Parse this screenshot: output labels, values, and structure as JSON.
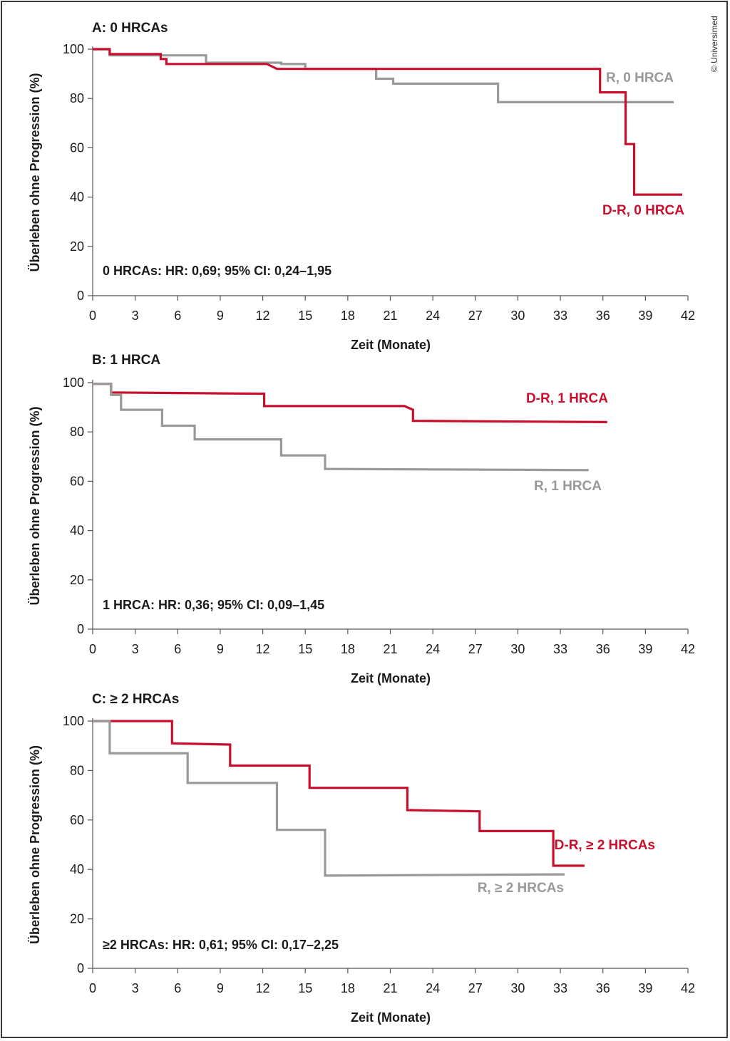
{
  "copyright": "© Universimed",
  "colors": {
    "treatment": "#c8102e",
    "control": "#999999",
    "axis": "#555555"
  },
  "chart_data": [
    {
      "type": "line",
      "panel": "A",
      "title": "A: 0 HRCAs",
      "xlabel": "Zeit (Monate)",
      "ylabel": "Überleben ohne Progression (%)",
      "xlim": [
        0,
        42
      ],
      "ylim": [
        0,
        100
      ],
      "xticks": [
        "0",
        "3",
        "6",
        "9",
        "12",
        "15",
        "18",
        "21",
        "24",
        "27",
        "30",
        "33",
        "36",
        "39",
        "42"
      ],
      "yticks": [
        "0",
        "20",
        "40",
        "60",
        "80",
        "100"
      ],
      "annotation": "0 HRCAs: HR: 0,69; 95% CI: 0,24–1,95",
      "series": [
        {
          "name": "R, 0 HRCA",
          "color": "#999999",
          "points": [
            [
              0,
              100
            ],
            [
              1.2,
              100
            ],
            [
              1.2,
              97.5
            ],
            [
              8,
              97.5
            ],
            [
              8,
              94.5
            ],
            [
              13.3,
              94.5
            ],
            [
              13.3,
              94
            ],
            [
              15,
              94
            ],
            [
              15,
              92
            ],
            [
              20,
              92
            ],
            [
              20,
              88
            ],
            [
              21.2,
              88
            ],
            [
              21.2,
              86
            ],
            [
              28.6,
              86
            ],
            [
              28.6,
              78.5
            ],
            [
              41,
              78.5
            ]
          ]
        },
        {
          "name": "D-R, 0 HRCA",
          "color": "#c8102e",
          "points": [
            [
              0,
              100
            ],
            [
              1.2,
              100
            ],
            [
              1.2,
              98
            ],
            [
              4.8,
              98
            ],
            [
              4.8,
              96
            ],
            [
              5.2,
              96
            ],
            [
              5.2,
              94
            ],
            [
              12.3,
              94
            ],
            [
              13,
              92
            ],
            [
              35.8,
              92
            ],
            [
              35.8,
              82.5
            ],
            [
              37.6,
              82.5
            ],
            [
              37.6,
              61.5
            ],
            [
              38.2,
              61.5
            ],
            [
              38.2,
              41
            ],
            [
              41.6,
              41
            ]
          ]
        }
      ]
    },
    {
      "type": "line",
      "panel": "B",
      "title": "B: 1 HRCA",
      "xlabel": "Zeit (Monate)",
      "ylabel": "Überleben ohne Progression (%)",
      "xlim": [
        0,
        42
      ],
      "ylim": [
        0,
        100
      ],
      "xticks": [
        "0",
        "3",
        "6",
        "9",
        "12",
        "15",
        "18",
        "21",
        "24",
        "27",
        "30",
        "33",
        "36",
        "39",
        "42"
      ],
      "yticks": [
        "0",
        "20",
        "40",
        "60",
        "80",
        "100"
      ],
      "annotation": "1 HRCA: HR: 0,36; 95% CI: 0,09–1,45",
      "series": [
        {
          "name": "D-R, 1 HRCA",
          "color": "#c8102e",
          "points": [
            [
              0,
              99.5
            ],
            [
              1.3,
              99.5
            ],
            [
              1.3,
              96
            ],
            [
              12.1,
              95.5
            ],
            [
              12.1,
              90.5
            ],
            [
              22,
              90.5
            ],
            [
              22.6,
              89
            ],
            [
              22.6,
              84.5
            ],
            [
              36.3,
              84
            ]
          ]
        },
        {
          "name": "R, 1 HRCA",
          "color": "#999999",
          "points": [
            [
              0,
              99.5
            ],
            [
              1.3,
              99.5
            ],
            [
              1.3,
              95
            ],
            [
              2,
              95
            ],
            [
              2,
              89
            ],
            [
              4.9,
              89
            ],
            [
              4.9,
              82.5
            ],
            [
              7.2,
              82.5
            ],
            [
              7.2,
              77
            ],
            [
              13.3,
              77
            ],
            [
              13.3,
              70.5
            ],
            [
              16.4,
              70.5
            ],
            [
              16.4,
              65
            ],
            [
              35,
              64.5
            ]
          ]
        }
      ]
    },
    {
      "type": "line",
      "panel": "C",
      "title": "C: ≥ 2 HRCAs",
      "xlabel": "Zeit (Monate)",
      "ylabel": "Überleben ohne Progression (%)",
      "xlim": [
        0,
        42
      ],
      "ylim": [
        0,
        100
      ],
      "xticks": [
        "0",
        "3",
        "6",
        "9",
        "12",
        "15",
        "18",
        "21",
        "24",
        "27",
        "30",
        "33",
        "36",
        "39",
        "42"
      ],
      "yticks": [
        "0",
        "20",
        "40",
        "60",
        "80",
        "100"
      ],
      "annotation": "≥2 HRCAs: HR: 0,61; 95% CI: 0,17–2,25",
      "series": [
        {
          "name": "D-R, ≥ 2 HRCAs",
          "color": "#c8102e",
          "points": [
            [
              0,
              100
            ],
            [
              5.6,
              100
            ],
            [
              5.6,
              91
            ],
            [
              9.7,
              90.5
            ],
            [
              9.7,
              82
            ],
            [
              15.3,
              82
            ],
            [
              15.3,
              73
            ],
            [
              22.2,
              73
            ],
            [
              22.2,
              64
            ],
            [
              27.3,
              63.5
            ],
            [
              27.3,
              55.5
            ],
            [
              32.5,
              55.5
            ],
            [
              32.5,
              41.5
            ],
            [
              34.7,
              41.5
            ]
          ]
        },
        {
          "name": "R, ≥ 2 HRCAs",
          "color": "#999999",
          "points": [
            [
              0,
              100
            ],
            [
              1.2,
              100
            ],
            [
              1.2,
              87
            ],
            [
              6.7,
              87
            ],
            [
              6.7,
              75
            ],
            [
              13,
              75
            ],
            [
              13,
              56
            ],
            [
              16.4,
              56
            ],
            [
              16.4,
              37.5
            ],
            [
              33.3,
              38
            ]
          ]
        }
      ]
    }
  ]
}
